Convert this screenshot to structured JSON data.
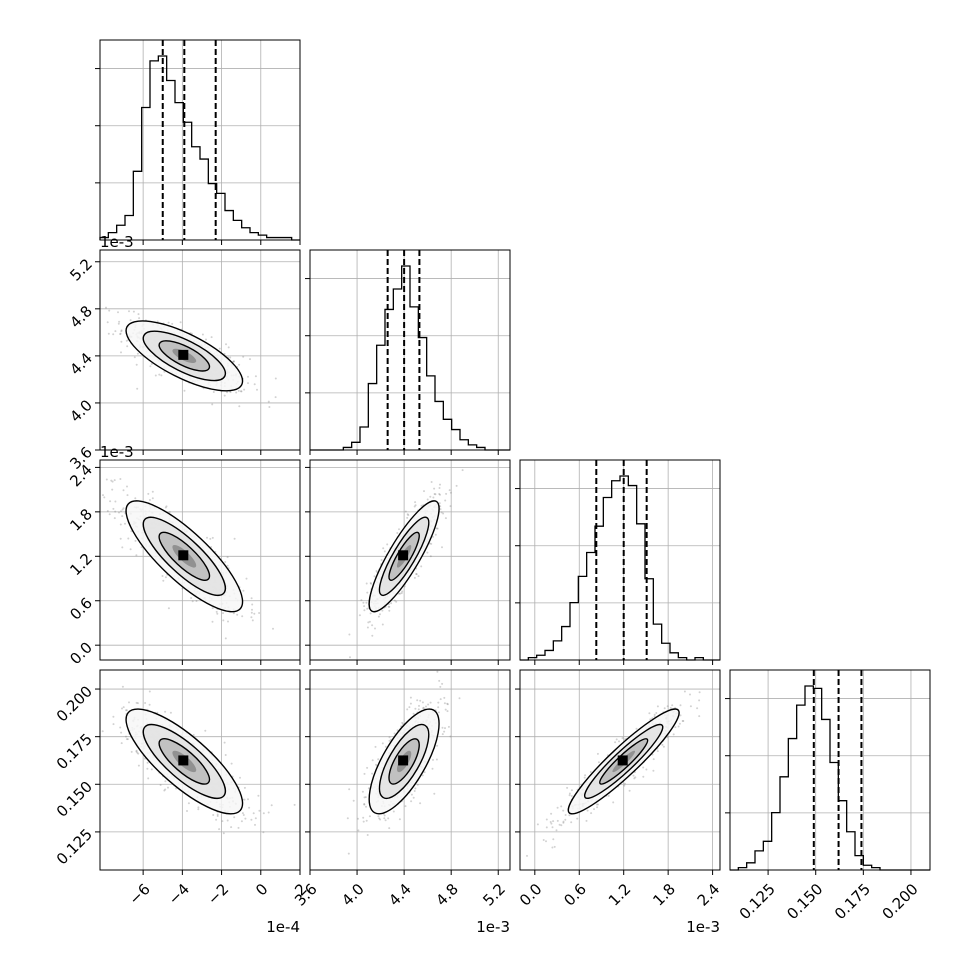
{
  "chart_data": {
    "type": "corner",
    "grid": true,
    "parameters": [
      {
        "name": "",
        "range": [
          -0.00082,
          0.0002
        ],
        "offset_text": "1e-4",
        "x_ticks": [
          -0.0006,
          -0.0004,
          -0.0002,
          0,
          0.0002
        ],
        "x_tick_labels": [
          "−6",
          "−4",
          "−2",
          "0",
          "2"
        ],
        "quantiles": [
          -0.0005,
          -0.00039,
          -0.00023
        ]
      },
      {
        "name": "",
        "range": [
          0.0036,
          0.0053
        ],
        "offset_text": "1e-3",
        "x_ticks": [
          0.0036,
          0.004,
          0.0044,
          0.0048,
          0.0052
        ],
        "x_tick_labels": [
          "3.6",
          "4.0",
          "4.4",
          "4.8",
          "5.2"
        ],
        "y_ticks": [
          0.0036,
          0.004,
          0.0044,
          0.0048,
          0.0052
        ],
        "y_tick_labels": [
          "3.6",
          "4.0",
          "4.4",
          "4.8",
          "5.2"
        ],
        "quantiles": [
          0.00426,
          0.0044,
          0.00453
        ]
      },
      {
        "name": "",
        "range": [
          -0.0002,
          0.0025
        ],
        "offset_text": "1e-3",
        "x_ticks": [
          0,
          0.0006,
          0.0012,
          0.0018,
          0.0024
        ],
        "x_tick_labels": [
          "0.0",
          "0.6",
          "1.2",
          "1.8",
          "2.4"
        ],
        "y_ticks": [
          0,
          0.0006,
          0.0012,
          0.0018,
          0.0024
        ],
        "y_tick_labels": [
          "0.0",
          "0.6",
          "1.2",
          "1.8",
          "2.4"
        ],
        "quantiles": [
          0.00083,
          0.0012,
          0.00151
        ]
      },
      {
        "name": "",
        "range": [
          0.105,
          0.21
        ],
        "offset_text": "",
        "x_ticks": [
          0.125,
          0.15,
          0.175,
          0.2
        ],
        "x_tick_labels": [
          "0.125",
          "0.150",
          "0.175",
          "0.200"
        ],
        "y_ticks": [
          0.125,
          0.15,
          0.175,
          0.2
        ],
        "y_tick_labels": [
          "0.125",
          "0.150",
          "0.175",
          "0.200"
        ],
        "quantiles": [
          0.149,
          0.162,
          0.174
        ]
      }
    ],
    "histograms": [
      [
        1,
        3,
        6,
        10,
        28,
        54,
        73,
        75,
        65,
        56,
        48,
        38,
        33,
        23,
        19,
        12,
        8,
        5,
        3,
        2,
        1,
        1,
        1,
        0
      ],
      [
        0,
        0,
        0,
        0,
        1,
        3,
        9,
        26,
        41,
        55,
        63,
        72,
        56,
        44,
        29,
        19,
        12,
        8,
        4,
        2,
        1,
        0,
        0,
        0
      ],
      [
        0,
        1,
        2,
        4,
        8,
        14,
        24,
        35,
        45,
        56,
        68,
        75,
        77,
        73,
        57,
        34,
        15,
        7,
        3,
        1,
        0,
        1,
        0,
        0
      ],
      [
        0,
        1,
        3,
        8,
        12,
        24,
        39,
        55,
        69,
        77,
        76,
        63,
        45,
        29,
        16,
        6,
        2,
        1,
        0,
        0,
        0,
        0,
        0,
        0
      ]
    ],
    "correlations": {
      "1-0": -0.72,
      "2-0": -0.82,
      "2-1": 0.86,
      "3-0": -0.8,
      "3-1": 0.72,
      "3-2": 0.93
    },
    "scatter_color": "#7f7f7f",
    "contour_color": "#000000"
  }
}
